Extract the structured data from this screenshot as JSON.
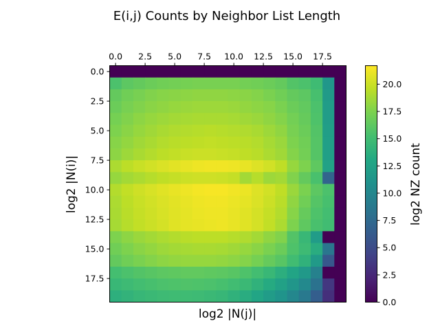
{
  "chart_data": {
    "type": "heatmap",
    "title": "E(i,j) Counts by Neighbor List Length",
    "xlabel": "log2 |N(j)|",
    "ylabel": "log2 |N(i)|",
    "colorbar_label": "log2 NZ count",
    "colormap": "viridis",
    "x_ticks": [
      "0.0",
      "2.5",
      "5.0",
      "7.5",
      "10.0",
      "12.5",
      "15.0",
      "17.5"
    ],
    "y_ticks": [
      "0.0",
      "2.5",
      "5.0",
      "7.5",
      "10.0",
      "12.5",
      "15.0",
      "17.5"
    ],
    "colorbar_ticks": [
      "0.0",
      "2.5",
      "5.0",
      "7.5",
      "10.0",
      "12.5",
      "15.0",
      "17.5",
      "20.0"
    ],
    "x_range": [
      -0.5,
      19.5
    ],
    "y_range": [
      -0.5,
      19.5
    ],
    "value_range": [
      0,
      21.7
    ],
    "values": [
      [
        0,
        0,
        0,
        0,
        0,
        0,
        0,
        0,
        0,
        0,
        0,
        0,
        0,
        0,
        0,
        0,
        0,
        0,
        0,
        0
      ],
      [
        15.5,
        16.2,
        16.5,
        16.8,
        17.0,
        17.1,
        17.2,
        17.3,
        17.3,
        17.3,
        17.3,
        17.1,
        17.0,
        16.8,
        16.5,
        15.8,
        15.5,
        14.9,
        11.5,
        0
      ],
      [
        16.5,
        17.0,
        17.3,
        17.6,
        17.8,
        17.9,
        18.0,
        18.1,
        18.1,
        18.1,
        18.0,
        17.9,
        17.7,
        17.4,
        17.0,
        16.5,
        16.2,
        15.3,
        11.8,
        0
      ],
      [
        16.8,
        17.3,
        17.6,
        17.9,
        18.1,
        18.3,
        18.4,
        18.5,
        18.5,
        18.5,
        18.4,
        18.2,
        18.0,
        17.8,
        17.4,
        16.8,
        16.4,
        15.5,
        12.0,
        0
      ],
      [
        17.2,
        17.6,
        18.0,
        18.3,
        18.5,
        18.7,
        18.8,
        18.9,
        18.9,
        18.9,
        18.8,
        18.6,
        18.4,
        18.1,
        17.7,
        17.1,
        16.6,
        15.6,
        12.0,
        0
      ],
      [
        17.5,
        17.9,
        18.3,
        18.6,
        18.9,
        19.1,
        19.2,
        19.3,
        19.4,
        19.3,
        19.2,
        19.1,
        18.9,
        18.5,
        18.1,
        17.3,
        16.8,
        15.8,
        12.2,
        0
      ],
      [
        17.8,
        18.2,
        18.6,
        18.9,
        19.2,
        19.4,
        19.5,
        19.6,
        19.7,
        19.6,
        19.5,
        19.4,
        19.2,
        18.8,
        18.4,
        17.5,
        17.0,
        15.9,
        12.3,
        0
      ],
      [
        18.0,
        18.5,
        18.9,
        19.2,
        19.5,
        19.7,
        19.9,
        20.0,
        20.0,
        19.9,
        19.8,
        19.6,
        19.4,
        19.0,
        18.6,
        17.7,
        17.1,
        15.9,
        12.3,
        0
      ],
      [
        19.0,
        19.5,
        19.9,
        20.2,
        20.5,
        20.8,
        21.0,
        21.2,
        21.3,
        21.3,
        21.2,
        21.0,
        20.6,
        20.2,
        19.6,
        18.3,
        17.5,
        16.3,
        12.5,
        0
      ],
      [
        18.3,
        18.7,
        19.0,
        19.3,
        19.6,
        19.8,
        20.0,
        20.1,
        20.1,
        20.0,
        19.8,
        18.7,
        19.3,
        18.5,
        18.7,
        17.6,
        16.5,
        15.4,
        7.0,
        0
      ],
      [
        19.2,
        19.7,
        20.1,
        20.4,
        20.7,
        21.0,
        21.2,
        21.4,
        21.5,
        21.5,
        21.3,
        21.1,
        20.6,
        20.2,
        19.6,
        18.4,
        17.4,
        16.2,
        15.5,
        0
      ],
      [
        19.0,
        19.5,
        19.9,
        20.2,
        20.5,
        20.8,
        21.0,
        21.2,
        21.3,
        21.3,
        21.1,
        20.9,
        20.5,
        20.0,
        19.4,
        18.1,
        17.0,
        15.9,
        15.3,
        0
      ],
      [
        18.9,
        19.4,
        19.8,
        20.1,
        20.4,
        20.7,
        20.9,
        21.1,
        21.2,
        21.2,
        21.0,
        20.7,
        20.3,
        19.8,
        19.2,
        17.8,
        16.6,
        15.6,
        15.1,
        0
      ],
      [
        18.8,
        19.3,
        19.7,
        20.0,
        20.3,
        20.7,
        20.9,
        21.0,
        21.1,
        21.2,
        21.0,
        20.7,
        20.3,
        19.7,
        19.0,
        17.5,
        16.3,
        15.4,
        15.0,
        0
      ],
      [
        17.5,
        18.0,
        18.4,
        18.7,
        19.0,
        19.2,
        19.4,
        19.5,
        19.5,
        19.5,
        19.3,
        19.1,
        18.7,
        18.1,
        17.6,
        15.8,
        14.5,
        12.0,
        0,
        0
      ],
      [
        17.0,
        17.5,
        17.9,
        18.2,
        18.5,
        18.7,
        18.8,
        18.9,
        18.9,
        18.8,
        18.6,
        18.3,
        17.9,
        17.4,
        16.8,
        15.6,
        14.8,
        13.5,
        8.5,
        0
      ],
      [
        16.5,
        17.0,
        17.4,
        17.7,
        18.0,
        18.2,
        18.3,
        18.3,
        18.3,
        18.2,
        18.0,
        17.7,
        17.2,
        16.6,
        16.0,
        15.0,
        14.0,
        11.8,
        6.0,
        0
      ],
      [
        15.2,
        15.5,
        15.8,
        16.0,
        16.2,
        16.3,
        16.4,
        16.4,
        16.3,
        16.2,
        16.0,
        15.6,
        15.1,
        14.5,
        13.7,
        12.7,
        11.7,
        9.5,
        0,
        0
      ],
      [
        14.5,
        14.8,
        15.1,
        15.3,
        15.5,
        15.6,
        15.7,
        15.6,
        15.5,
        15.3,
        15.0,
        14.6,
        14.0,
        13.3,
        12.5,
        11.4,
        10.2,
        8.2,
        3.5,
        0
      ],
      [
        13.8,
        14.1,
        14.4,
        14.6,
        14.8,
        14.9,
        14.9,
        14.8,
        14.6,
        14.4,
        14.0,
        13.5,
        12.8,
        12.0,
        11.2,
        10.0,
        8.8,
        6.5,
        3.0,
        0
      ]
    ]
  }
}
